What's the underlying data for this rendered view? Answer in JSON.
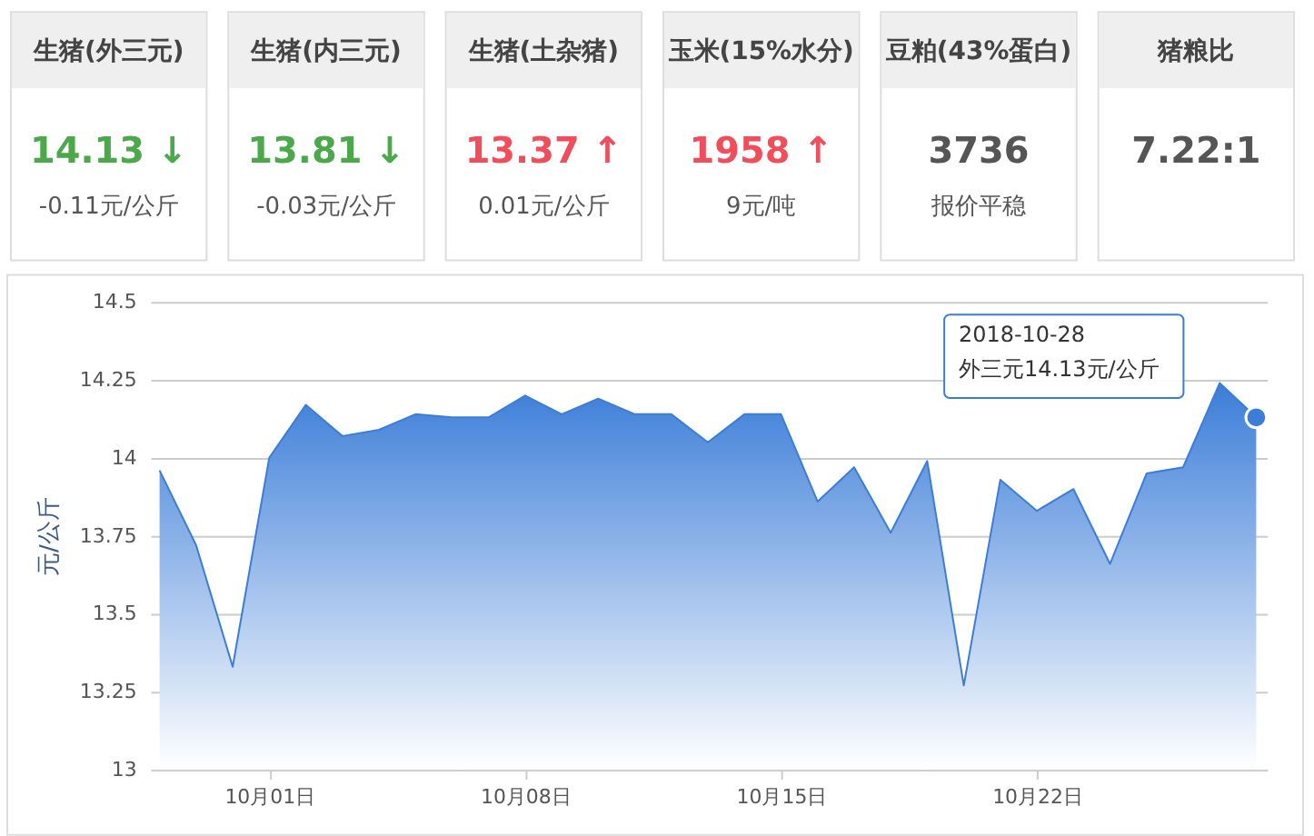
{
  "chart_data": [
    {
      "type": "other",
      "categories": [
        "生猪(外三元)",
        "生猪(内三元)",
        "生猪(土杂猪)",
        "玉米(15%水分)",
        "豆粕(43%蛋白)",
        "猪粮比"
      ],
      "value_labels": [
        "14.13 ↓",
        "13.81 ↓",
        "13.37 ↑",
        "1958 ↑",
        "3736",
        "7.22:1"
      ],
      "annotations": [
        "-0.11元/公斤",
        "-0.03元/公斤",
        "0.01元/公斤",
        "9元/吨",
        "报价平稳"
      ]
    },
    {
      "type": "area",
      "ylabel": "元/公斤",
      "x": [
        "2018-09-28",
        "2018-09-29",
        "2018-09-30",
        "2018-10-01",
        "2018-10-02",
        "2018-10-03",
        "2018-10-04",
        "2018-10-05",
        "2018-10-06",
        "2018-10-07",
        "2018-10-08",
        "2018-10-09",
        "2018-10-10",
        "2018-10-11",
        "2018-10-12",
        "2018-10-13",
        "2018-10-14",
        "2018-10-15",
        "2018-10-16",
        "2018-10-17",
        "2018-10-18",
        "2018-10-19",
        "2018-10-20",
        "2018-10-21",
        "2018-10-22",
        "2018-10-23",
        "2018-10-24",
        "2018-10-25",
        "2018-10-26",
        "2018-10-27",
        "2018-10-28"
      ],
      "series": [
        {
          "color": "#3b7dd8",
          "values": [
            13.96,
            13.72,
            13.33,
            14.0,
            14.17,
            14.07,
            14.09,
            14.14,
            14.13,
            14.13,
            14.2,
            14.14,
            14.19,
            14.14,
            14.14,
            14.05,
            14.14,
            14.14,
            13.86,
            13.97,
            13.76,
            13.99,
            13.27,
            13.93,
            13.83,
            13.9,
            13.66,
            13.95,
            13.97,
            14.24,
            14.13
          ]
        },
        {
          "type": "scatter",
          "color": "#3b7dd8",
          "marker": "circle",
          "x": [
            "2018-10-28"
          ],
          "values": [
            14.13
          ]
        }
      ],
      "xlim": [
        "2018-09-27T18:00",
        "2018-10-28T07:00"
      ],
      "xticks": [
        {
          "value": "2018-10-01",
          "label": "10月01日"
        },
        {
          "value": "2018-10-08",
          "label": "10月08日"
        },
        {
          "value": "2018-10-15",
          "label": "10月15日"
        },
        {
          "value": "2018-10-22",
          "label": "10月22日"
        }
      ],
      "ylim": [
        13,
        14.5
      ],
      "yticks": [
        13,
        13.25,
        13.5,
        13.75,
        14,
        14.25,
        14.5
      ],
      "grid": "y",
      "annotations": [
        "2018-10-28\n外三元14.13元/公斤"
      ]
    }
  ]
}
